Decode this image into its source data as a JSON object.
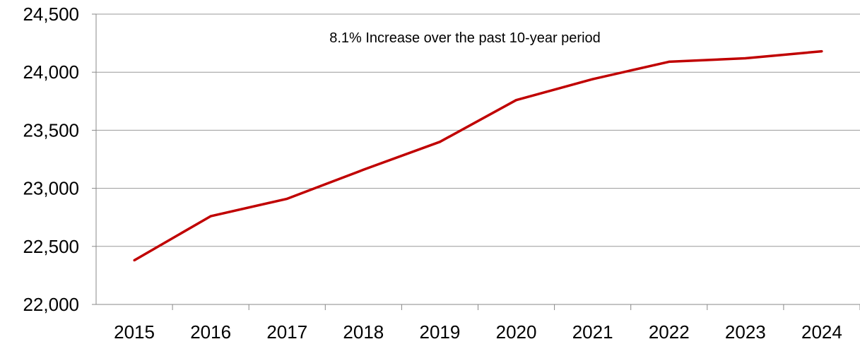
{
  "chart_data": {
    "type": "line",
    "title": "",
    "xlabel": "",
    "ylabel": "",
    "categories": [
      "2015",
      "2016",
      "2017",
      "2018",
      "2019",
      "2020",
      "2021",
      "2022",
      "2023",
      "2024"
    ],
    "series": [
      {
        "color": "#C00000",
        "values": [
          22380,
          22760,
          22910,
          23160,
          23400,
          23760,
          23940,
          24090,
          24120,
          24180
        ]
      }
    ],
    "ylim": [
      22000,
      24500
    ],
    "yticks": [
      22000,
      22500,
      23000,
      23500,
      24000,
      24500
    ],
    "ytick_labels": [
      "22,000",
      "22,500",
      "23,000",
      "23,500",
      "24,000",
      "24,500"
    ],
    "grid": "horizontal",
    "legend": "none",
    "annotation": "8.1% Increase over the past 10-year period",
    "colors": {
      "gridline": "#999999",
      "axis": "#888888"
    }
  }
}
